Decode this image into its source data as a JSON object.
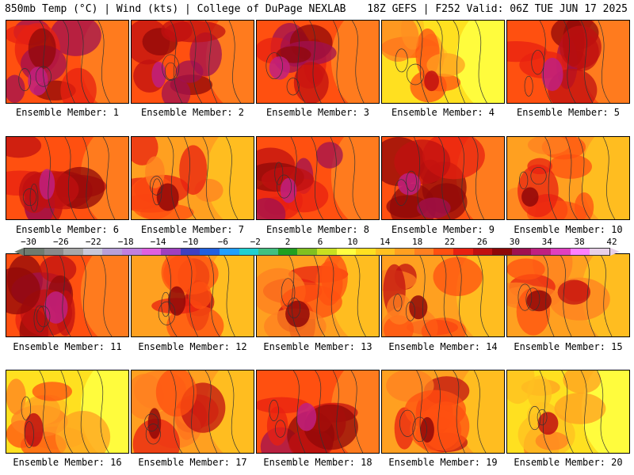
{
  "header": {
    "left": "850mb Temp (°C) | Wind (kts) | College of DuPage NEXLAB",
    "right": "18Z GEFS | F252 Valid: 06Z TUE JUN 17 2025"
  },
  "colorbar": {
    "labels": [
      "−30",
      "−26",
      "−22",
      "−18",
      "−14",
      "−10",
      "−6",
      "−2",
      "2",
      "6",
      "10",
      "14",
      "18",
      "22",
      "26",
      "30",
      "34",
      "38",
      "42"
    ],
    "colors": [
      "#6f7b6f",
      "#8a8a8a",
      "#a8a8a8",
      "#c8c8d8",
      "#b8a0d8",
      "#c080e0",
      "#e060e0",
      "#a040c0",
      "#4040c0",
      "#2060e0",
      "#20a0ff",
      "#20d0d0",
      "#40c080",
      "#20a020",
      "#80c020",
      "#c8e020",
      "#ffff40",
      "#ffe020",
      "#ffc020",
      "#ffa020",
      "#ff8020",
      "#ff5010",
      "#e82010",
      "#c01010",
      "#900808",
      "#a01050",
      "#c02080",
      "#e040c0",
      "#ff80ff",
      "#e8d0e8"
    ]
  },
  "members": [
    {
      "label": "Ensemble Member: 1",
      "tone": "hot"
    },
    {
      "label": "Ensemble Member: 2",
      "tone": "hot"
    },
    {
      "label": "Ensemble Member: 3",
      "tone": "hot"
    },
    {
      "label": "Ensemble Member: 4",
      "tone": "mild"
    },
    {
      "label": "Ensemble Member: 5",
      "tone": "hot"
    },
    {
      "label": "Ensemble Member: 6",
      "tone": "hot"
    },
    {
      "label": "Ensemble Member: 7",
      "tone": "warm"
    },
    {
      "label": "Ensemble Member: 8",
      "tone": "hot"
    },
    {
      "label": "Ensemble Member: 9",
      "tone": "hot"
    },
    {
      "label": "Ensemble Member: 10",
      "tone": "warm"
    },
    {
      "label": "Ensemble Member: 11",
      "tone": "hot"
    },
    {
      "label": "Ensemble Member: 12",
      "tone": "warm"
    },
    {
      "label": "Ensemble Member: 13",
      "tone": "warm"
    },
    {
      "label": "Ensemble Member: 14",
      "tone": "warm"
    },
    {
      "label": "Ensemble Member: 15",
      "tone": "warm"
    },
    {
      "label": "Ensemble Member: 16",
      "tone": "mild"
    },
    {
      "label": "Ensemble Member: 17",
      "tone": "warm"
    },
    {
      "label": "Ensemble Member: 18",
      "tone": "hot"
    },
    {
      "label": "Ensemble Member: 19",
      "tone": "warm"
    },
    {
      "label": "Ensemble Member: 20",
      "tone": "mild"
    }
  ]
}
